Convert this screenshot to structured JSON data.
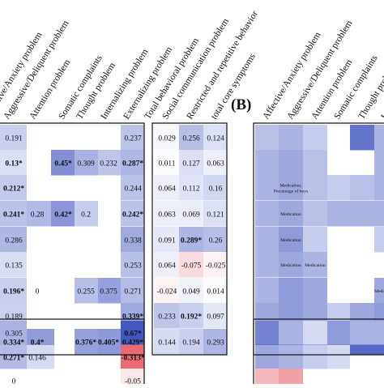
{
  "panel_b_label": "(B)",
  "chart_data": [
    {
      "type": "heatmap",
      "panel": "A",
      "columns": [
        "Affective/Anxiety problem",
        "Aggressive/Deliquent problem",
        "Attention problem",
        "Somatic complaints",
        "Thought problem",
        "Internalizing problem",
        "Externalizing problem",
        "Total behavioral problem"
      ],
      "upper_rows": [
        [
          "",
          "0.191",
          "",
          "",
          "",
          "",
          "",
          "0.237"
        ],
        [
          "",
          "0.13*",
          "",
          "",
          "0.45*",
          "0.309",
          "0.232",
          "0.287*"
        ],
        [
          "",
          "0.212*",
          "",
          "",
          "",
          "",
          "",
          "0.244"
        ],
        [
          "",
          "0.241*",
          "0.28",
          "",
          "0.42*",
          "0.2",
          "",
          "0.242*"
        ],
        [
          "",
          "0.286",
          "",
          "",
          "",
          "",
          "",
          "0.338"
        ],
        [
          "",
          "0.135",
          "",
          "",
          "",
          "",
          "",
          "0.253"
        ],
        [
          "",
          "0.196*",
          "0",
          "",
          "",
          "0.255",
          "0.375",
          "0.271"
        ],
        [
          "",
          "0.189",
          "",
          "",
          "",
          "",
          "",
          "0.339*"
        ],
        [
          "",
          "0.334*",
          "0.4*",
          "",
          "",
          "0.376*",
          "0.405*",
          "0.429*"
        ]
      ],
      "lower_rows": [
        [
          "",
          "0.305",
          "",
          "",
          "",
          "",
          "",
          "0.67*"
        ],
        [
          "",
          "0.271*",
          "0.146",
          "",
          "",
          "",
          "",
          "-0.313*"
        ],
        [
          "",
          "0",
          "",
          "",
          "",
          "",
          "",
          "-0.05"
        ]
      ]
    },
    {
      "type": "heatmap",
      "panel": "A",
      "columns": [
        "Social communication problem",
        "Restricted and repetitive behavior",
        "total core symptoms"
      ],
      "upper_rows": [
        [
          "0.029",
          "0.256",
          "0.124"
        ],
        [
          "0.011",
          "0.127",
          "0.063"
        ],
        [
          "0.064",
          "0.112",
          "0.16"
        ],
        [
          "0.063",
          "0.069",
          "0.121"
        ],
        [
          "0.091",
          "0.289*",
          "0.26"
        ],
        [
          "0.064",
          "-0.075",
          "-0.025"
        ],
        [
          "-0.024",
          "0.049",
          "0.014"
        ],
        [
          "0.233",
          "0.192*",
          "0.097"
        ],
        [
          "0.144",
          "0.194",
          "0.293"
        ]
      ]
    },
    {
      "type": "heatmap",
      "panel": "B",
      "columns": [
        "Affective/Anxiety problem",
        "Aggressive/Deliquent problem",
        "Attention problem",
        "Somatic complaints",
        "Thought problem",
        "I"
      ],
      "upper_rows": [
        [
          "",
          "",
          "",
          "",
          "",
          ""
        ],
        [
          "",
          "",
          "",
          "",
          "",
          ""
        ],
        [
          "",
          "Medication, Percentage of boys",
          "",
          "",
          "",
          ""
        ],
        [
          "",
          "Medication",
          "",
          "",
          "",
          ""
        ],
        [
          "",
          "Medication",
          "",
          "",
          "",
          ""
        ],
        [
          "",
          "Medication",
          "Medication",
          "",
          "",
          ""
        ],
        [
          "",
          "",
          "",
          "",
          "",
          "Medi"
        ],
        [
          "",
          "",
          "",
          "",
          "",
          ""
        ],
        [
          "",
          "",
          "",
          "",
          "",
          ""
        ]
      ],
      "lower_rows": [
        [
          "",
          "",
          "",
          "",
          "",
          ""
        ],
        [
          "",
          "",
          "",
          "",
          "",
          ""
        ],
        [
          "",
          "",
          "",
          "",
          "",
          ""
        ]
      ]
    }
  ]
}
